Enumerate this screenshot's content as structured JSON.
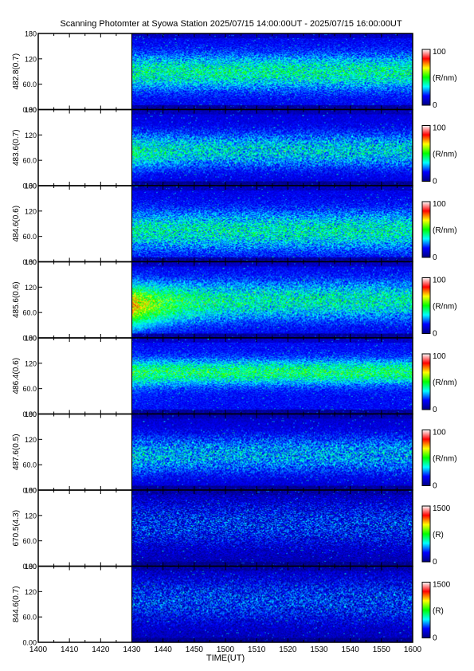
{
  "title": "Scanning Photomter at Syowa Station 2025/07/15 14:00:00UT - 2025/07/15 16:00:00UT",
  "chart_data": {
    "type": "heatmap",
    "title": "Scanning Photomter at Syowa Station 2025/07/15 14:00:00UT - 2025/07/15 16:00:00UT",
    "xlabel": "TIME(UT)",
    "x_ticks": [
      "1400",
      "1410",
      "1420",
      "1430",
      "1440",
      "1450",
      "1500",
      "1510",
      "1520",
      "1530",
      "1540",
      "1550",
      "1600"
    ],
    "xlim": [
      "1400",
      "1600"
    ],
    "data_start": "1430",
    "y_ticks": [
      "0.00",
      "60.0",
      "120",
      "180"
    ],
    "ylim": [
      0,
      180
    ],
    "panels": [
      {
        "ylabel": "482.8(0.7)",
        "cbar_max": "100",
        "cbar_min": "0",
        "cbar_unit": "(R/nm)",
        "vmax": 100,
        "level": 0.38,
        "band_center": 90,
        "band_width": 40,
        "early_bright": 0.0
      },
      {
        "ylabel": "483.6(0.7)",
        "cbar_max": "100",
        "cbar_min": "0",
        "cbar_unit": "(R/nm)",
        "vmax": 100,
        "level": 0.32,
        "band_center": 85,
        "band_width": 40,
        "early_bright": 0.1
      },
      {
        "ylabel": "484.6(0.6)",
        "cbar_max": "100",
        "cbar_min": "0",
        "cbar_unit": "(R/nm)",
        "vmax": 100,
        "level": 0.36,
        "band_center": 75,
        "band_width": 45,
        "early_bright": 0.0
      },
      {
        "ylabel": "485.6(0.6)",
        "cbar_max": "100",
        "cbar_min": "0",
        "cbar_unit": "(R/nm)",
        "vmax": 100,
        "level": 0.36,
        "band_center": 90,
        "band_width": 45,
        "early_bright": 0.45
      },
      {
        "ylabel": "486.4(0.6)",
        "cbar_max": "100",
        "cbar_min": "0",
        "cbar_unit": "(R/nm)",
        "vmax": 100,
        "level": 0.42,
        "band_center": 100,
        "band_width": 28,
        "early_bright": 0.05
      },
      {
        "ylabel": "487.6(0.5)",
        "cbar_max": "100",
        "cbar_min": "0",
        "cbar_unit": "(R/nm)",
        "vmax": 100,
        "level": 0.27,
        "band_center": 85,
        "band_width": 45,
        "early_bright": 0.05
      },
      {
        "ylabel": "670.5(4.3)",
        "cbar_max": "1500",
        "cbar_min": "0",
        "cbar_unit": "(R)",
        "vmax": 1500,
        "level": 0.16,
        "band_center": 100,
        "band_width": 60,
        "early_bright": 0.0
      },
      {
        "ylabel": "844.6(0.7)",
        "cbar_max": "1500",
        "cbar_min": "0",
        "cbar_unit": "(R)",
        "vmax": 1500,
        "level": 0.17,
        "band_center": 100,
        "band_width": 60,
        "early_bright": 0.0
      }
    ],
    "colorscale": [
      "#000080",
      "#0000ff",
      "#00ffff",
      "#00ff00",
      "#ffff00",
      "#ff0000",
      "#ffffff"
    ],
    "grid": false,
    "legend": "right colorbars"
  }
}
